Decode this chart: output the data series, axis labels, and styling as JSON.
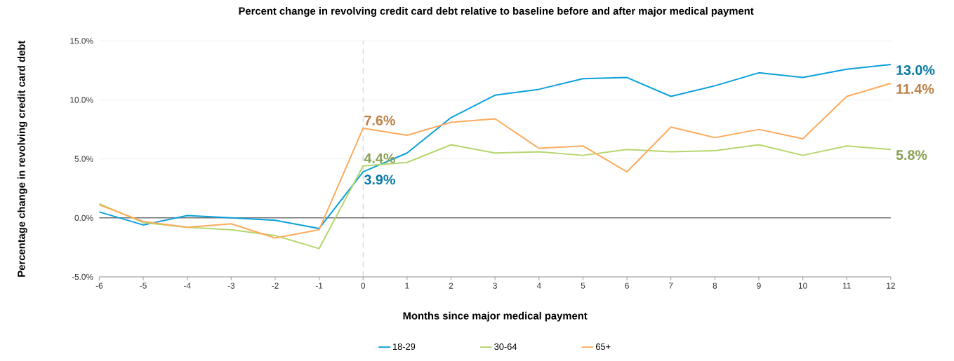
{
  "chart_data": {
    "type": "line",
    "title": "Percent change in revolving credit card debt relative to baseline before and after major medical payment",
    "xlabel": "Months since major medical payment",
    "ylabel": "Percentage change in revolving credit card debt",
    "x": [
      -6,
      -5,
      -4,
      -3,
      -2,
      -1,
      0,
      1,
      2,
      3,
      4,
      5,
      6,
      7,
      8,
      9,
      10,
      11,
      12
    ],
    "series": [
      {
        "name": "18-29",
        "color": "#0aa0dc",
        "values": [
          0.5,
          -0.6,
          0.2,
          0.0,
          -0.2,
          -0.9,
          3.9,
          5.5,
          8.5,
          10.4,
          10.9,
          11.8,
          11.9,
          10.3,
          11.2,
          12.3,
          11.9,
          12.6,
          13.0
        ],
        "value_labels": [
          null,
          null,
          null,
          null,
          null,
          null,
          "3.9%",
          null,
          null,
          null,
          null,
          null,
          null,
          null,
          null,
          null,
          null,
          null,
          "13.0%"
        ]
      },
      {
        "name": "30-64",
        "color": "#b5d66f",
        "values": [
          1.2,
          -0.4,
          -0.8,
          -1.0,
          -1.5,
          -2.6,
          4.4,
          4.7,
          6.2,
          5.5,
          5.6,
          5.3,
          5.8,
          5.6,
          5.7,
          6.2,
          5.3,
          6.1,
          5.8
        ],
        "value_labels": [
          null,
          null,
          null,
          null,
          null,
          null,
          "4.4%",
          null,
          null,
          null,
          null,
          null,
          null,
          null,
          null,
          null,
          null,
          null,
          "5.8%"
        ]
      },
      {
        "name": "65+",
        "color": "#fdab5c",
        "values": [
          1.1,
          -0.3,
          -0.8,
          -0.5,
          -1.7,
          -1.0,
          7.6,
          7.0,
          8.1,
          8.4,
          5.9,
          6.1,
          3.9,
          7.7,
          6.8,
          7.5,
          6.7,
          10.3,
          11.4
        ],
        "value_labels": [
          null,
          null,
          null,
          null,
          null,
          null,
          "7.6%",
          null,
          null,
          null,
          null,
          null,
          null,
          null,
          null,
          null,
          null,
          null,
          "11.4%"
        ]
      }
    ],
    "xlim": [
      -6,
      12
    ],
    "ylim": [
      -5,
      15
    ],
    "xticks": [
      -6,
      -5,
      -4,
      -3,
      -2,
      -1,
      0,
      1,
      2,
      3,
      4,
      5,
      6,
      7,
      8,
      9,
      10,
      11,
      12
    ],
    "yticks": [
      {
        "value": -5,
        "label": "-5.0%"
      },
      {
        "value": 0,
        "label": "0.0%"
      },
      {
        "value": 5,
        "label": "5.0%"
      },
      {
        "value": 10,
        "label": "10.0%"
      },
      {
        "value": 15,
        "label": "15.0%"
      }
    ],
    "grid": "y",
    "legend": "bottom",
    "marker": "none",
    "line_style": "solid",
    "ref_lines": [
      {
        "axis": "x",
        "value": 0,
        "color": "#c8c8c8",
        "line_style": "dashed"
      },
      {
        "axis": "y",
        "value": 0,
        "color": "#000000",
        "line_style": "solid"
      }
    ]
  }
}
